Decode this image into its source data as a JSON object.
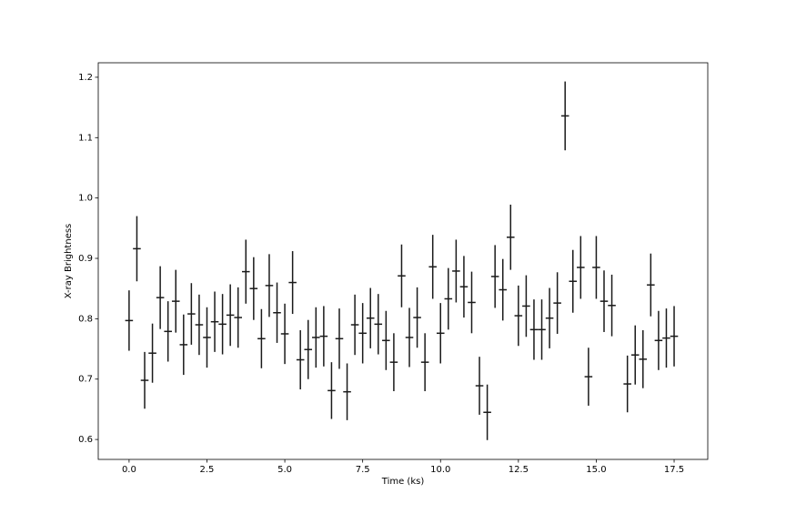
{
  "chart_data": {
    "type": "errorbar",
    "xlabel": "Time (ks)",
    "ylabel": "X-ray Brightness",
    "color": "#1a1a1a",
    "x": [
      0,
      0.25,
      0.5,
      0.75,
      1,
      1.25,
      1.5,
      1.75,
      2,
      2.25,
      2.5,
      2.75,
      3,
      3.25,
      3.5,
      3.75,
      4,
      4.25,
      4.5,
      4.75,
      5,
      5.25,
      5.5,
      5.75,
      6,
      6.25,
      6.5,
      6.75,
      7,
      7.25,
      7.5,
      7.75,
      8,
      8.25,
      8.5,
      8.75,
      9,
      9.25,
      9.5,
      9.75,
      10,
      10.25,
      10.5,
      10.75,
      11,
      11.25,
      11.5,
      11.75,
      12,
      12.25,
      12.5,
      12.75,
      13,
      13.25,
      13.5,
      13.75,
      14,
      14.25,
      14.5,
      14.75,
      15,
      15.25,
      15.5,
      16,
      16.25,
      16.5,
      16.75,
      17,
      17.25,
      17.5
    ],
    "values": [
      0.797,
      0.916,
      0.698,
      0.743,
      0.835,
      0.779,
      0.829,
      0.757,
      0.808,
      0.79,
      0.769,
      0.795,
      0.791,
      0.806,
      0.802,
      0.878,
      0.85,
      0.767,
      0.855,
      0.81,
      0.775,
      0.86,
      0.732,
      0.749,
      0.769,
      0.771,
      0.681,
      0.767,
      0.679,
      0.79,
      0.776,
      0.801,
      0.791,
      0.764,
      0.728,
      0.871,
      0.769,
      0.802,
      0.728,
      0.886,
      0.776,
      0.833,
      0.879,
      0.853,
      0.827,
      0.689,
      0.645,
      0.87,
      0.848,
      0.935,
      0.805,
      0.821,
      0.782,
      0.782,
      0.801,
      0.826,
      1.136,
      0.862,
      0.885,
      0.704,
      0.885,
      0.829,
      0.822,
      0.692,
      0.74,
      0.733,
      0.856,
      0.764,
      0.768,
      0.771
    ],
    "yerr": [
      0.05,
      0.054,
      0.047,
      0.049,
      0.052,
      0.05,
      0.052,
      0.05,
      0.051,
      0.05,
      0.05,
      0.05,
      0.05,
      0.051,
      0.05,
      0.053,
      0.052,
      0.049,
      0.052,
      0.05,
      0.05,
      0.052,
      0.049,
      0.049,
      0.05,
      0.05,
      0.047,
      0.05,
      0.047,
      0.05,
      0.05,
      0.05,
      0.05,
      0.049,
      0.048,
      0.052,
      0.049,
      0.05,
      0.048,
      0.053,
      0.05,
      0.051,
      0.052,
      0.051,
      0.051,
      0.048,
      0.046,
      0.052,
      0.051,
      0.054,
      0.05,
      0.051,
      0.05,
      0.05,
      0.05,
      0.051,
      0.057,
      0.052,
      0.052,
      0.048,
      0.052,
      0.051,
      0.051,
      0.047,
      0.049,
      0.048,
      0.052,
      0.049,
      0.049,
      0.05
    ],
    "xerr": 0.125,
    "xlim": [
      -0.99,
      18.58
    ],
    "ylim": [
      0.567,
      1.224
    ],
    "xticks": [
      {
        "value": 0,
        "label": "0.0"
      },
      2.5,
      {
        "value": 5,
        "label": "5.0"
      },
      7.5,
      {
        "value": 10,
        "label": "10.0"
      },
      12.5,
      {
        "value": 15,
        "label": "15.0"
      },
      17.5
    ],
    "yticks": [
      0.6,
      0.7,
      0.8,
      0.9,
      {
        "value": 1,
        "label": "1.0"
      },
      1.1,
      1.2
    ]
  }
}
